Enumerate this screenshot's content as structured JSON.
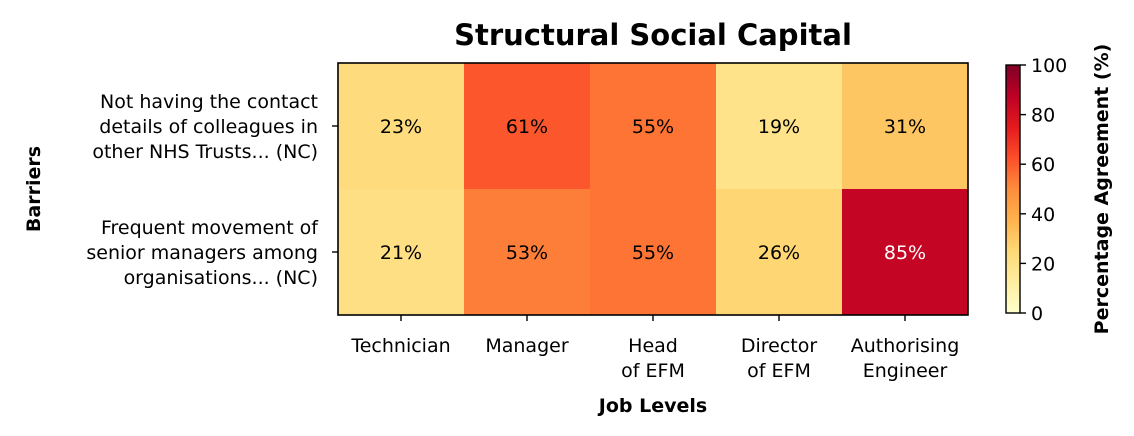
{
  "chart_data": {
    "type": "heatmap",
    "title": "Structural Social Capital",
    "xlabel": "Job Levels",
    "ylabel": "Barriers",
    "colorbar_label": "Percentage Agreement (%)",
    "colormap": "YlOrRd",
    "clim": [
      0,
      100
    ],
    "colorbar_ticks": [
      "0",
      "20",
      "40",
      "60",
      "80",
      "100"
    ],
    "columns": [
      [
        "Technician"
      ],
      [
        "Manager"
      ],
      [
        "Head",
        "of EFM"
      ],
      [
        "Director",
        "of EFM"
      ],
      [
        "Authorising",
        "Engineer"
      ]
    ],
    "rows": [
      [
        "Not having the contact",
        "details of colleagues in",
        "other NHS Trusts... (NC)"
      ],
      [
        "Frequent movement of",
        "senior managers among",
        "organisations... (NC)"
      ]
    ],
    "values": [
      [
        23,
        61,
        55,
        19,
        31
      ],
      [
        21,
        53,
        55,
        26,
        85
      ]
    ],
    "value_suffix": "%"
  }
}
